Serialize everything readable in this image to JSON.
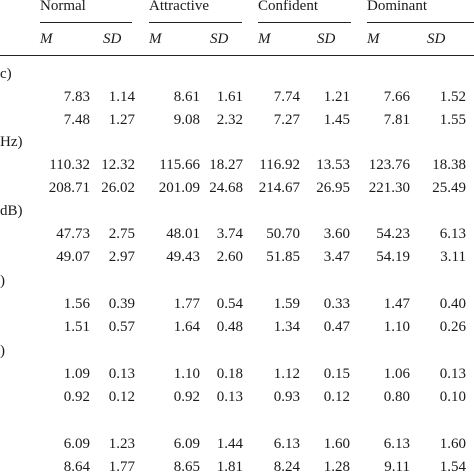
{
  "columns": [
    {
      "label": "Normal"
    },
    {
      "label": "Attractive"
    },
    {
      "label": "Confident"
    },
    {
      "label": "Dominant"
    }
  ],
  "subheaders": {
    "mean": "M",
    "sd": "SD"
  },
  "groups": [
    {
      "label": "c)",
      "rows": [
        [
          "7.83",
          "1.14",
          "8.61",
          "1.61",
          "7.74",
          "1.21",
          "7.66",
          "1.52"
        ],
        [
          "7.48",
          "1.27",
          "9.08",
          "2.32",
          "7.27",
          "1.45",
          "7.81",
          "1.55"
        ]
      ]
    },
    {
      "label": "Hz)",
      "rows": [
        [
          "110.32",
          "12.32",
          "115.66",
          "18.27",
          "116.92",
          "13.53",
          "123.76",
          "18.38"
        ],
        [
          "208.71",
          "26.02",
          "201.09",
          "24.68",
          "214.67",
          "26.95",
          "221.30",
          "25.49"
        ]
      ]
    },
    {
      "label": "dB)",
      "rows": [
        [
          "47.73",
          "2.75",
          "48.01",
          "3.74",
          "50.70",
          "3.60",
          "54.23",
          "6.13"
        ],
        [
          "49.07",
          "2.97",
          "49.43",
          "2.60",
          "51.85",
          "3.47",
          "54.19",
          "3.11"
        ]
      ]
    },
    {
      "label": ")",
      "rows": [
        [
          "1.56",
          "0.39",
          "1.77",
          "0.54",
          "1.59",
          "0.33",
          "1.47",
          "0.40"
        ],
        [
          "1.51",
          "0.57",
          "1.64",
          "0.48",
          "1.34",
          "0.47",
          "1.10",
          "0.26"
        ]
      ]
    },
    {
      "label": ")",
      "rows": [
        [
          "1.09",
          "0.13",
          "1.10",
          "0.18",
          "1.12",
          "0.15",
          "1.06",
          "0.13"
        ],
        [
          "0.92",
          "0.12",
          "0.92",
          "0.13",
          "0.93",
          "0.12",
          "0.80",
          "0.10"
        ]
      ]
    },
    {
      "label": "",
      "rows": [
        [
          "6.09",
          "1.23",
          "6.09",
          "1.44",
          "6.13",
          "1.60",
          "6.13",
          "1.60"
        ],
        [
          "8.64",
          "1.77",
          "8.65",
          "1.81",
          "8.24",
          "1.28",
          "9.11",
          "1.54"
        ]
      ]
    }
  ]
}
